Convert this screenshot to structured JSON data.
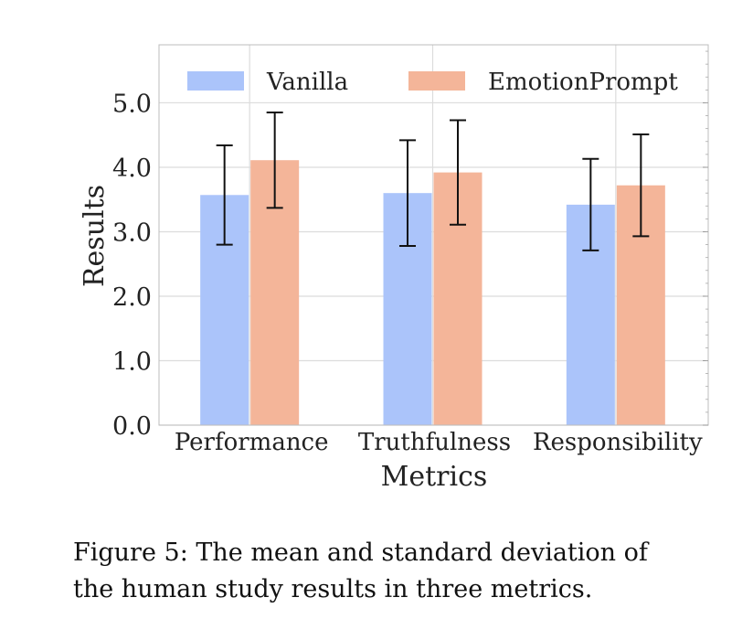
{
  "chart_data": {
    "type": "bar",
    "xlabel": "Metrics",
    "ylabel": "Results",
    "ylim": [
      0,
      5.9
    ],
    "yticks": [
      0.0,
      1.0,
      2.0,
      3.0,
      4.0,
      5.0
    ],
    "ytick_labels": [
      "0.0",
      "1.0",
      "2.0",
      "3.0",
      "4.0",
      "5.0"
    ],
    "categories": [
      "Performance",
      "Truthfulness",
      "Responsibility"
    ],
    "series": [
      {
        "name": "Vanilla",
        "color": "#abc4fa",
        "values": [
          3.57,
          3.6,
          3.42
        ],
        "std": [
          0.77,
          0.82,
          0.71
        ]
      },
      {
        "name": "EmotionPrompt",
        "color": "#f4b599",
        "values": [
          4.11,
          3.92,
          3.72
        ],
        "std": [
          0.74,
          0.81,
          0.79
        ]
      }
    ],
    "legend_position": "top",
    "grid": true
  },
  "caption": {
    "line1": "Figure 5: The mean and standard deviation of",
    "line2": "the human study results in three metrics."
  }
}
